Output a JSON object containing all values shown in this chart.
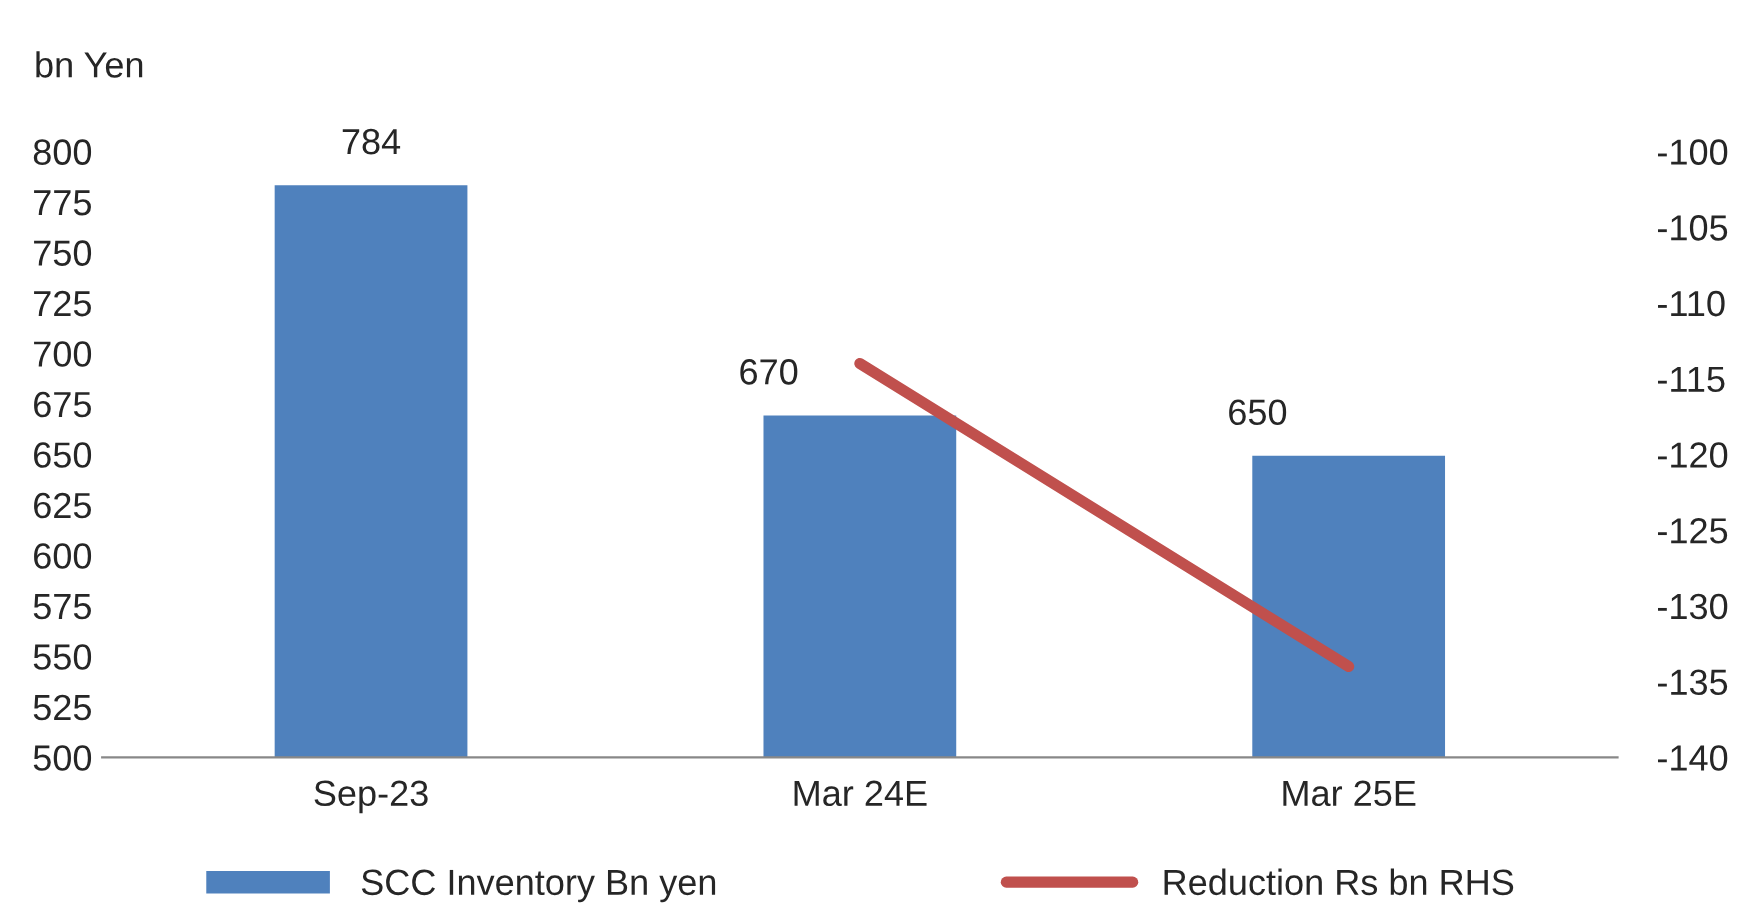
{
  "chart_data": {
    "type": "bar",
    "ylabel": "bn Yen",
    "categories": [
      "Sep-23",
      "Mar 24E",
      "Mar 25E"
    ],
    "series": [
      {
        "name": "SCC Inventory Bn yen",
        "color": "#4f81bd",
        "values": [
          784,
          670,
          650
        ],
        "data_labels": true
      },
      {
        "name": "Reduction Rs bn RHS",
        "type": "line",
        "axis": "y2",
        "color": "#c0504d",
        "values": [
          null,
          -114,
          -134
        ]
      }
    ],
    "ylim": [
      500,
      800
    ],
    "yticks": [
      500,
      525,
      550,
      575,
      600,
      625,
      650,
      675,
      700,
      725,
      750,
      775,
      800
    ],
    "y2lim": [
      -140,
      -100
    ],
    "y2ticks": [
      -140,
      -135,
      -130,
      -125,
      -120,
      -115,
      -110,
      -105,
      -100
    ],
    "legend": "bottom",
    "grid": false
  }
}
